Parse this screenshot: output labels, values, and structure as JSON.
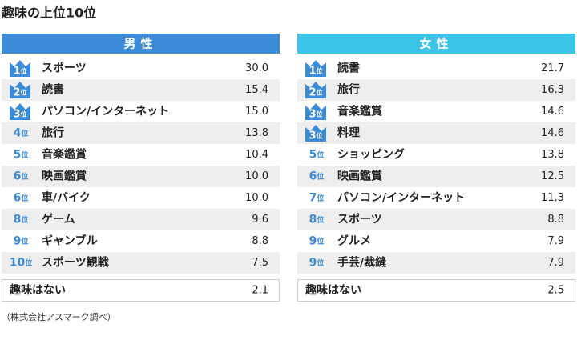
{
  "title": "趣味の上位10位",
  "rank_unit": "位",
  "tables": [
    {
      "header": "男性",
      "color": "#3b8bd9",
      "rows": [
        {
          "rank": "1",
          "label": "スポーツ",
          "value": "30.0"
        },
        {
          "rank": "2",
          "label": "読書",
          "value": "15.4"
        },
        {
          "rank": "3",
          "label": "パソコン/インターネット",
          "value": "15.0"
        },
        {
          "rank": "4",
          "label": "旅行",
          "value": "13.8"
        },
        {
          "rank": "5",
          "label": "音楽鑑賞",
          "value": "10.4"
        },
        {
          "rank": "6",
          "label": "映画鑑賞",
          "value": "10.0"
        },
        {
          "rank": "6",
          "label": "車/バイク",
          "value": "10.0"
        },
        {
          "rank": "8",
          "label": "ゲーム",
          "value": "9.6"
        },
        {
          "rank": "9",
          "label": "ギャンブル",
          "value": "8.8"
        },
        {
          "rank": "10",
          "label": "スポーツ観戦",
          "value": "7.5"
        }
      ],
      "footer": {
        "label": "趣味はない",
        "value": "2.1"
      }
    },
    {
      "header": "女性",
      "color": "#3cc3e8",
      "rows": [
        {
          "rank": "1",
          "label": "読書",
          "value": "21.7"
        },
        {
          "rank": "2",
          "label": "旅行",
          "value": "16.3"
        },
        {
          "rank": "3",
          "label": "音楽鑑賞",
          "value": "14.6"
        },
        {
          "rank": "3",
          "label": "料理",
          "value": "14.6"
        },
        {
          "rank": "5",
          "label": "ショッピング",
          "value": "13.8"
        },
        {
          "rank": "6",
          "label": "映画鑑賞",
          "value": "12.5"
        },
        {
          "rank": "7",
          "label": "パソコン/インターネット",
          "value": "11.3"
        },
        {
          "rank": "8",
          "label": "スポーツ",
          "value": "8.8"
        },
        {
          "rank": "9",
          "label": "グルメ",
          "value": "7.9"
        },
        {
          "rank": "9",
          "label": "手芸/裁縫",
          "value": "7.9"
        }
      ],
      "footer": {
        "label": "趣味はない",
        "value": "2.5"
      }
    }
  ],
  "source": "（株式会社アスマーク調べ）"
}
